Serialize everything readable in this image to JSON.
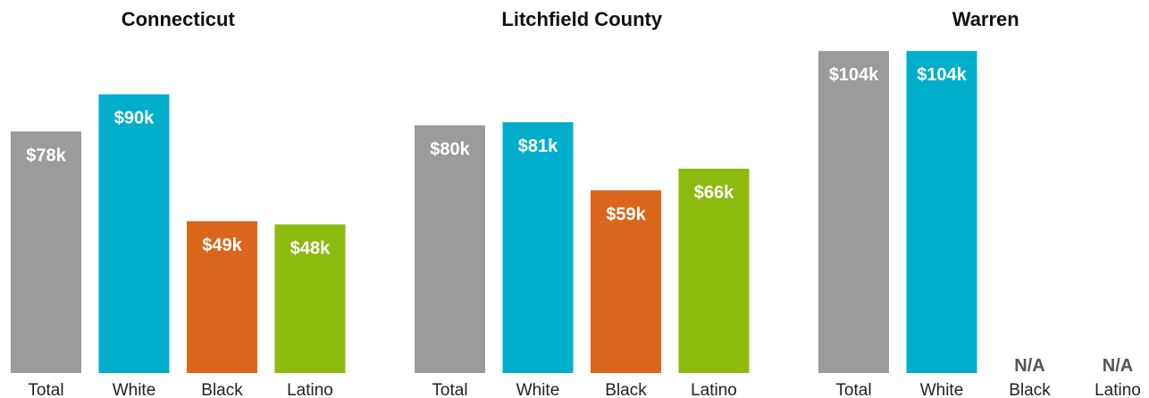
{
  "chart_data": [
    {
      "type": "bar",
      "title": "Connecticut",
      "categories": [
        "Total",
        "White",
        "Black",
        "Latino"
      ],
      "values": [
        78,
        90,
        49,
        48
      ],
      "labels": [
        "$78k",
        "$90k",
        "$49k",
        "$48k"
      ],
      "colors": [
        "#9b9b9b",
        "#00aecb",
        "#d9661a",
        "#8dba0e"
      ],
      "ylim": [
        0,
        110
      ],
      "grid": false
    },
    {
      "type": "bar",
      "title": "Litchfield County",
      "categories": [
        "Total",
        "White",
        "Black",
        "Latino"
      ],
      "values": [
        80,
        81,
        59,
        66
      ],
      "labels": [
        "$80k",
        "$81k",
        "$59k",
        "$66k"
      ],
      "colors": [
        "#9b9b9b",
        "#00aecb",
        "#d9661a",
        "#8dba0e"
      ],
      "ylim": [
        0,
        110
      ],
      "grid": false
    },
    {
      "type": "bar",
      "title": "Warren",
      "categories": [
        "Total",
        "White",
        "Black",
        "Latino"
      ],
      "values": [
        104,
        104,
        null,
        null
      ],
      "labels": [
        "$104k",
        "$104k",
        "N/A",
        "N/A"
      ],
      "colors": [
        "#9b9b9b",
        "#00aecb",
        "#d9661a",
        "#8dba0e"
      ],
      "ylim": [
        0,
        110
      ],
      "grid": false
    }
  ]
}
